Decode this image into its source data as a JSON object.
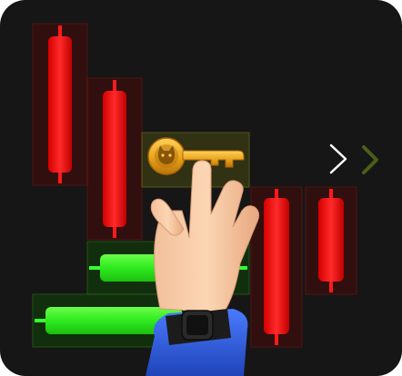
{
  "illustration": {
    "background_color": "#161616",
    "bear_color": "#ff1a1a",
    "bull_color": "#39ff2e",
    "key_color": "#e8a21c",
    "arrow_color": "#ffffff",
    "chevron_color": "#4a5e1a",
    "sleeve_color": "#2f5fe0",
    "watch_color": "#1c1c1c"
  },
  "icons": {
    "key": "key-icon",
    "arrow": "arrow-right-icon",
    "chevron": "chevron-right-icon",
    "hand": "hand-pointer-icon"
  }
}
